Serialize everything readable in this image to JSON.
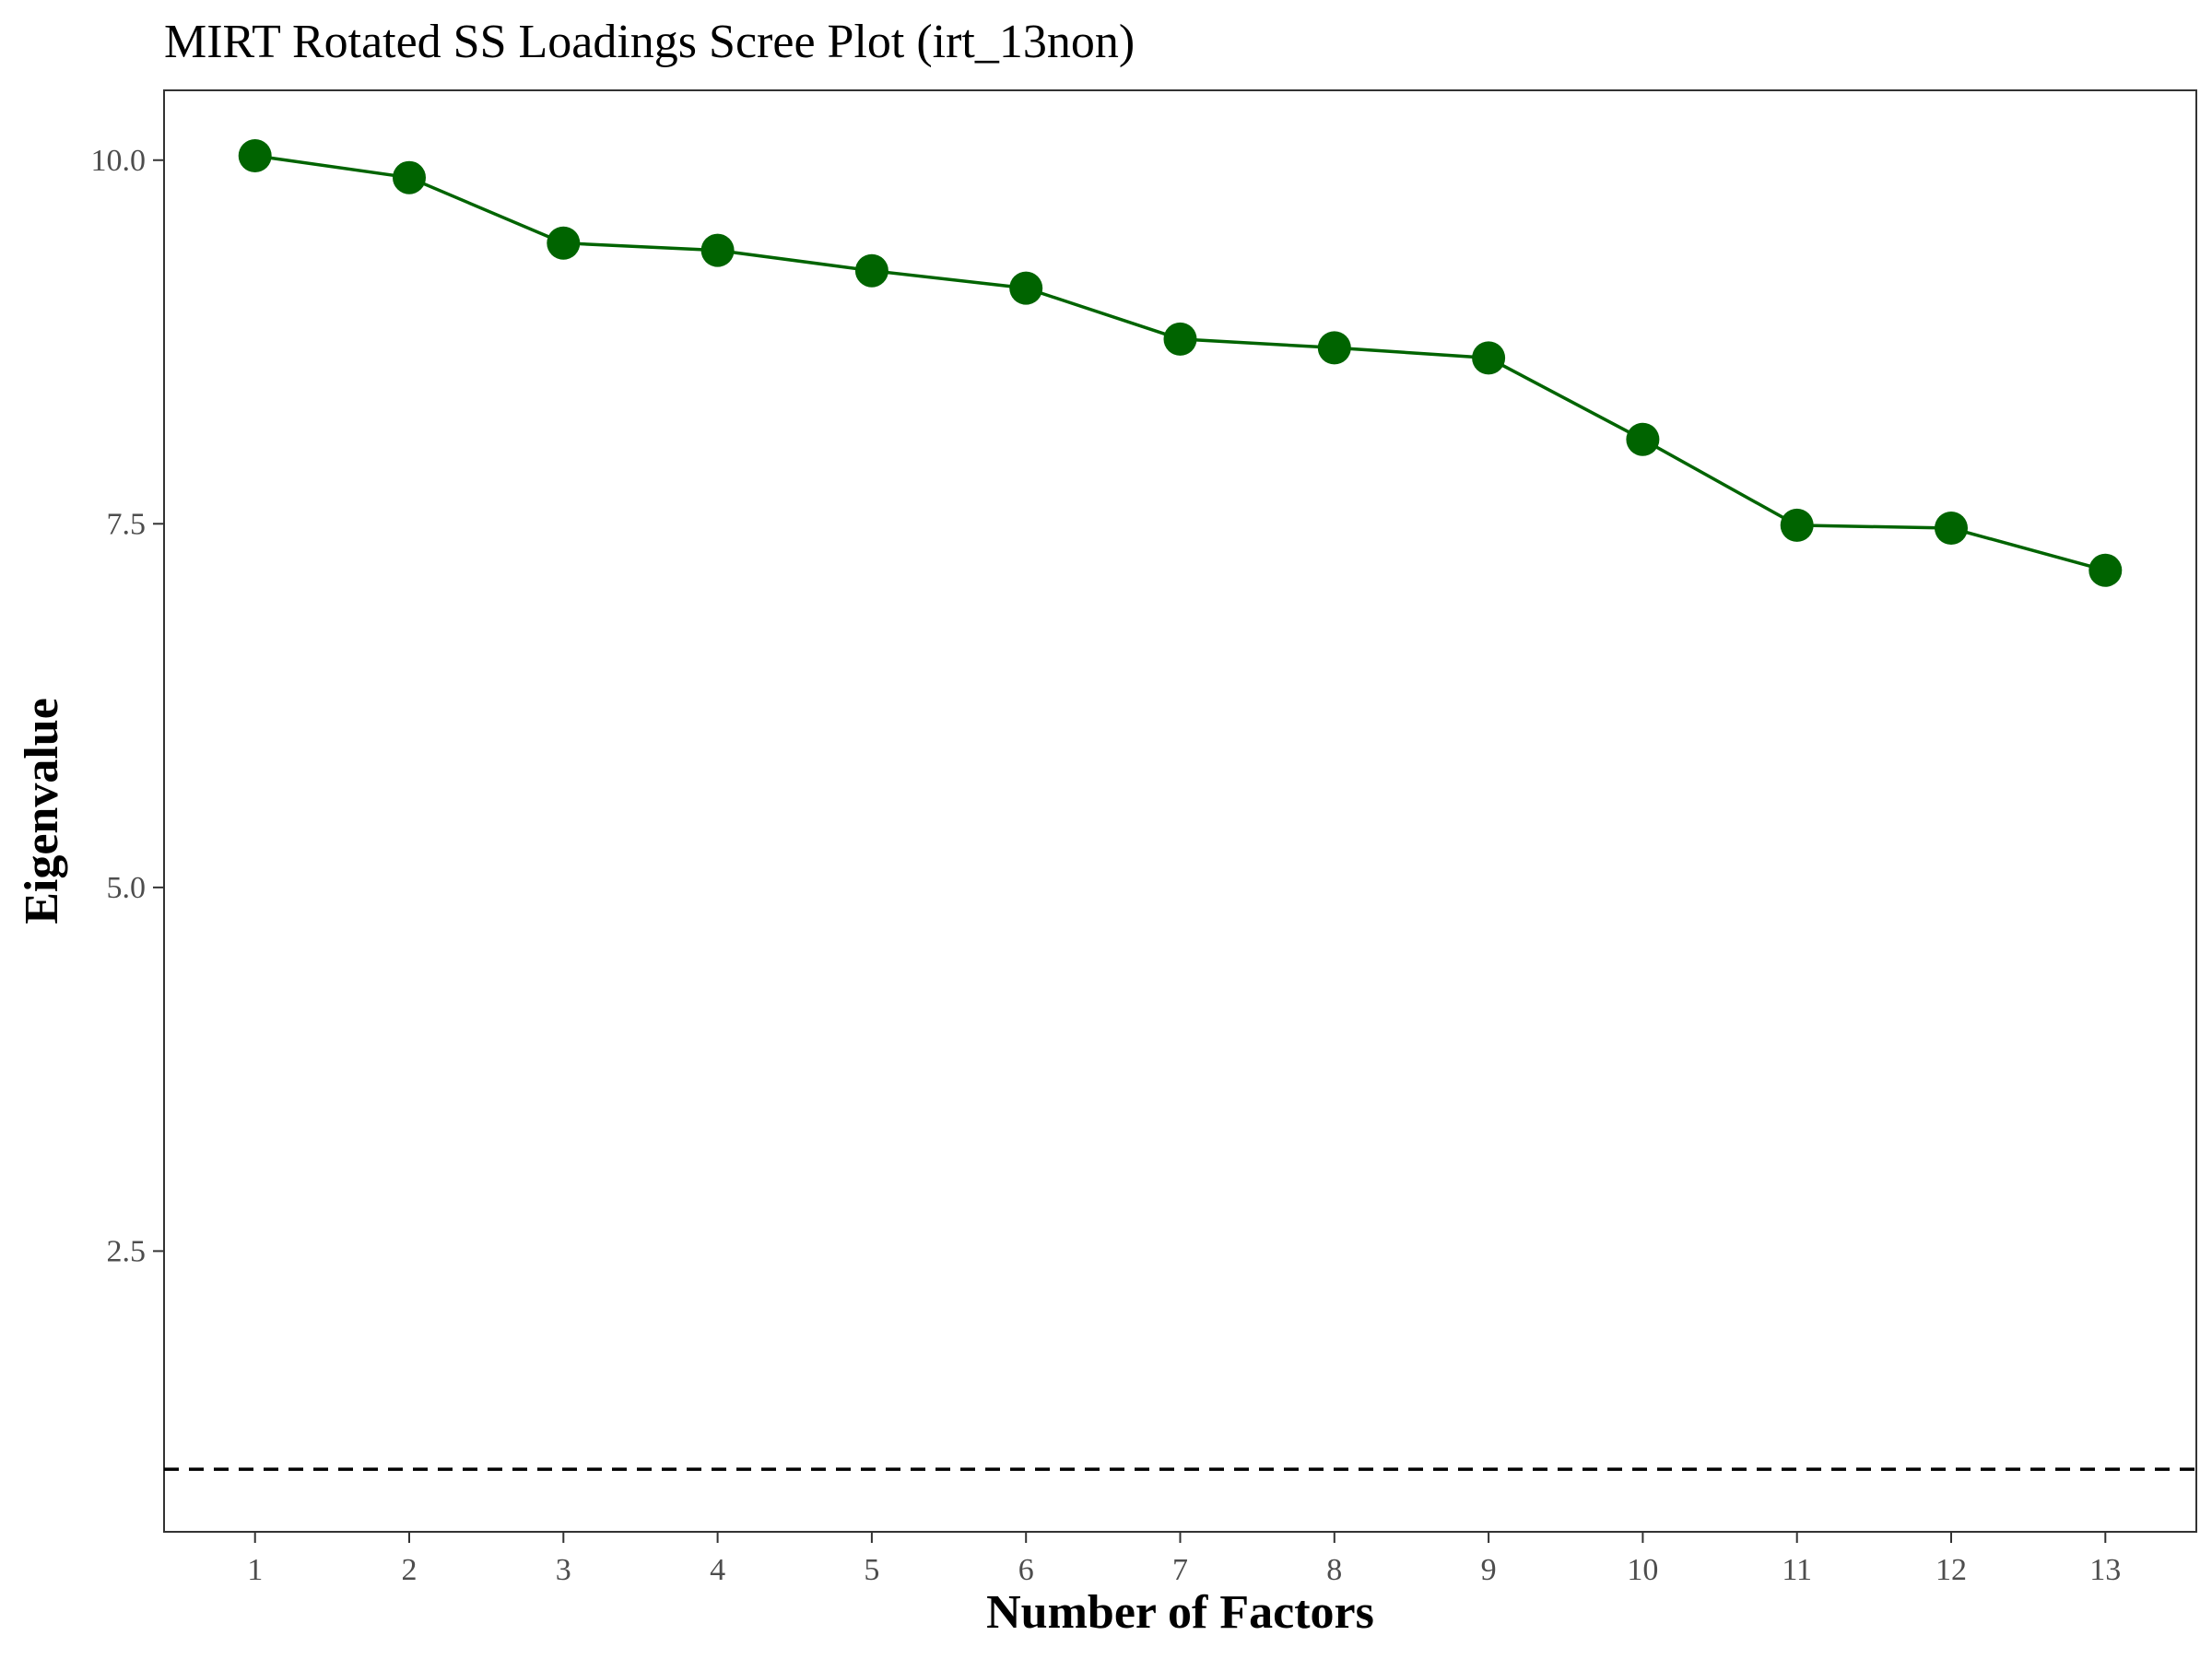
{
  "chart_data": {
    "type": "line",
    "title": "MIRT Rotated SS Loadings Scree Plot (irt_13non)",
    "xlabel": "Number of Factors",
    "ylabel": "Eigenvalue",
    "x": [
      1,
      2,
      3,
      4,
      5,
      6,
      7,
      8,
      9,
      10,
      11,
      12,
      13
    ],
    "x_tick_labels": [
      "1",
      "2",
      "3",
      "4",
      "5",
      "6",
      "7",
      "8",
      "9",
      "10",
      "11",
      "12",
      "13"
    ],
    "y_ticks": [
      2.5,
      5.0,
      7.5,
      10.0
    ],
    "y_tick_labels": [
      "2.5",
      "5.0",
      "7.5",
      "10.0"
    ],
    "xlim": [
      0.41,
      13.59
    ],
    "ylim": [
      0.57,
      10.48
    ],
    "series": [
      {
        "color": "#006400",
        "values": [
          10.03,
          9.88,
          9.43,
          9.38,
          9.24,
          9.12,
          8.77,
          8.71,
          8.64,
          8.08,
          7.49,
          7.47,
          7.18
        ]
      }
    ],
    "reference_line": {
      "y": 1.0,
      "style": "dashed",
      "color": "#000000"
    },
    "grid": false,
    "legend": "none",
    "point_color": "#006400"
  }
}
